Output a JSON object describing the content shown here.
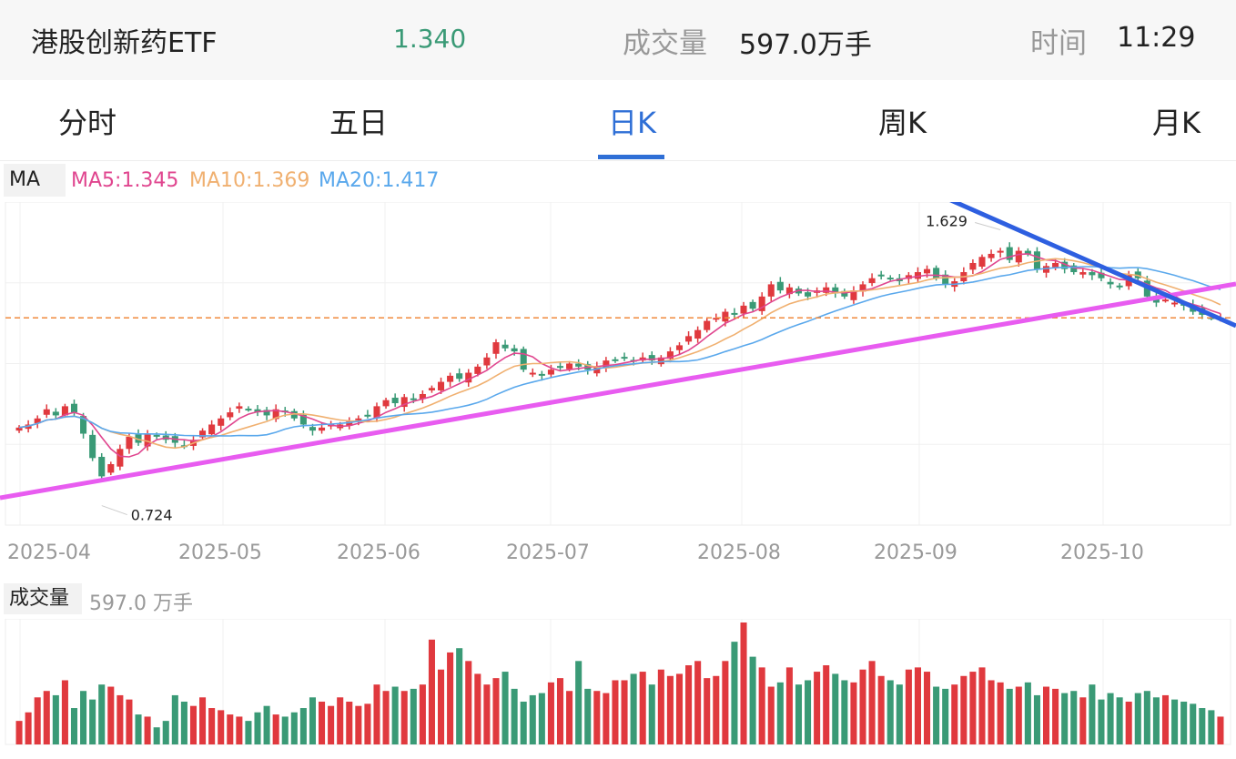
{
  "header": {
    "name": "港股创新药ETF",
    "price": "1.340",
    "volume_label": "成交量",
    "volume_value": "597.0万手",
    "time_label": "时间",
    "time_value": "11:29"
  },
  "tabs": [
    {
      "label": "分时",
      "active": false
    },
    {
      "label": "五日",
      "active": false
    },
    {
      "label": "日K",
      "active": true
    },
    {
      "label": "周K",
      "active": false
    },
    {
      "label": "月K",
      "active": false
    }
  ],
  "legend": {
    "ma_label": "MA",
    "ma5": "MA5:1.345",
    "ma10": "MA10:1.369",
    "ma20": "MA20:1.417"
  },
  "colors": {
    "up": "#e0393e",
    "down": "#3a9a76",
    "ma5": "#e0468f",
    "ma10": "#f0b070",
    "ma20": "#5aa8ec",
    "accent": "#2f6fd6",
    "ref_line": "#f08a3c",
    "trend_up": "#e85cf0",
    "trend_down": "#2e5fe0"
  },
  "volume_panel": {
    "label": "成交量",
    "value": "597.0 万手"
  },
  "chart_data": {
    "type": "candlestick",
    "x_tick_labels": [
      "2025-04",
      "2025-05",
      "2025-06",
      "2025-07",
      "2025-08",
      "2025-09",
      "2025-10"
    ],
    "y_range": [
      0.66,
      1.72
    ],
    "annotations": [
      {
        "label": "1.629",
        "kind": "high"
      },
      {
        "label": "0.724",
        "kind": "low"
      }
    ],
    "reference_price": 1.34,
    "ma_last": {
      "MA5": 1.345,
      "MA10": 1.369,
      "MA20": 1.417
    },
    "grid": true,
    "close": [
      0.98,
      0.99,
      1.01,
      1.04,
      1.02,
      1.05,
      1.03,
      0.96,
      0.88,
      0.82,
      0.86,
      0.91,
      0.95,
      0.93,
      0.96,
      0.95,
      0.94,
      0.93,
      0.92,
      0.94,
      0.97,
      0.99,
      1.01,
      1.03,
      1.05,
      1.04,
      1.03,
      1.02,
      1.04,
      1.03,
      1.01,
      0.99,
      0.97,
      0.98,
      0.99,
      0.99,
      1.0,
      1.01,
      1.02,
      1.05,
      1.07,
      1.06,
      1.08,
      1.07,
      1.09,
      1.11,
      1.13,
      1.15,
      1.14,
      1.16,
      1.18,
      1.21,
      1.26,
      1.24,
      1.23,
      1.17,
      1.16,
      1.15,
      1.17,
      1.18,
      1.19,
      1.18,
      1.17,
      1.18,
      1.2,
      1.2,
      1.21,
      1.2,
      1.21,
      1.2,
      1.21,
      1.23,
      1.25,
      1.28,
      1.3,
      1.33,
      1.34,
      1.36,
      1.35,
      1.38,
      1.37,
      1.41,
      1.45,
      1.43,
      1.44,
      1.42,
      1.41,
      1.43,
      1.44,
      1.42,
      1.41,
      1.43,
      1.45,
      1.47,
      1.48,
      1.47,
      1.46,
      1.48,
      1.49,
      1.5,
      1.47,
      1.45,
      1.46,
      1.49,
      1.52,
      1.54,
      1.55,
      1.56,
      1.53,
      1.56,
      1.55,
      1.5,
      1.51,
      1.52,
      1.5,
      1.49,
      1.49,
      1.48,
      1.47,
      1.45,
      1.44,
      1.48,
      1.47,
      1.41,
      1.39,
      1.4,
      1.39,
      1.38,
      1.36,
      1.35,
      1.34,
      1.34
    ],
    "volume": [
      22,
      30,
      44,
      50,
      46,
      60,
      34,
      50,
      42,
      56,
      54,
      46,
      42,
      28,
      26,
      16,
      22,
      46,
      40,
      36,
      44,
      34,
      32,
      28,
      26,
      22,
      30,
      36,
      28,
      26,
      30,
      34,
      44,
      40,
      36,
      44,
      40,
      36,
      38,
      56,
      50,
      54,
      50,
      52,
      56,
      98,
      70,
      86,
      90,
      78,
      66,
      56,
      62,
      68,
      52,
      40,
      46,
      48,
      58,
      62,
      50,
      78,
      52,
      50,
      48,
      60,
      60,
      66,
      68,
      56,
      70,
      64,
      66,
      74,
      78,
      62,
      64,
      78,
      96,
      114,
      82,
      72,
      54,
      58,
      72,
      56,
      60,
      68,
      74,
      66,
      60,
      58,
      70,
      78,
      64,
      60,
      56,
      70,
      72,
      68,
      54,
      52,
      56,
      64,
      68,
      72,
      60,
      58,
      52,
      54,
      58,
      46,
      54,
      52,
      48,
      50,
      44,
      56,
      42,
      48,
      44,
      40,
      48,
      50,
      44,
      46,
      42,
      40,
      38,
      34,
      32,
      26
    ]
  }
}
